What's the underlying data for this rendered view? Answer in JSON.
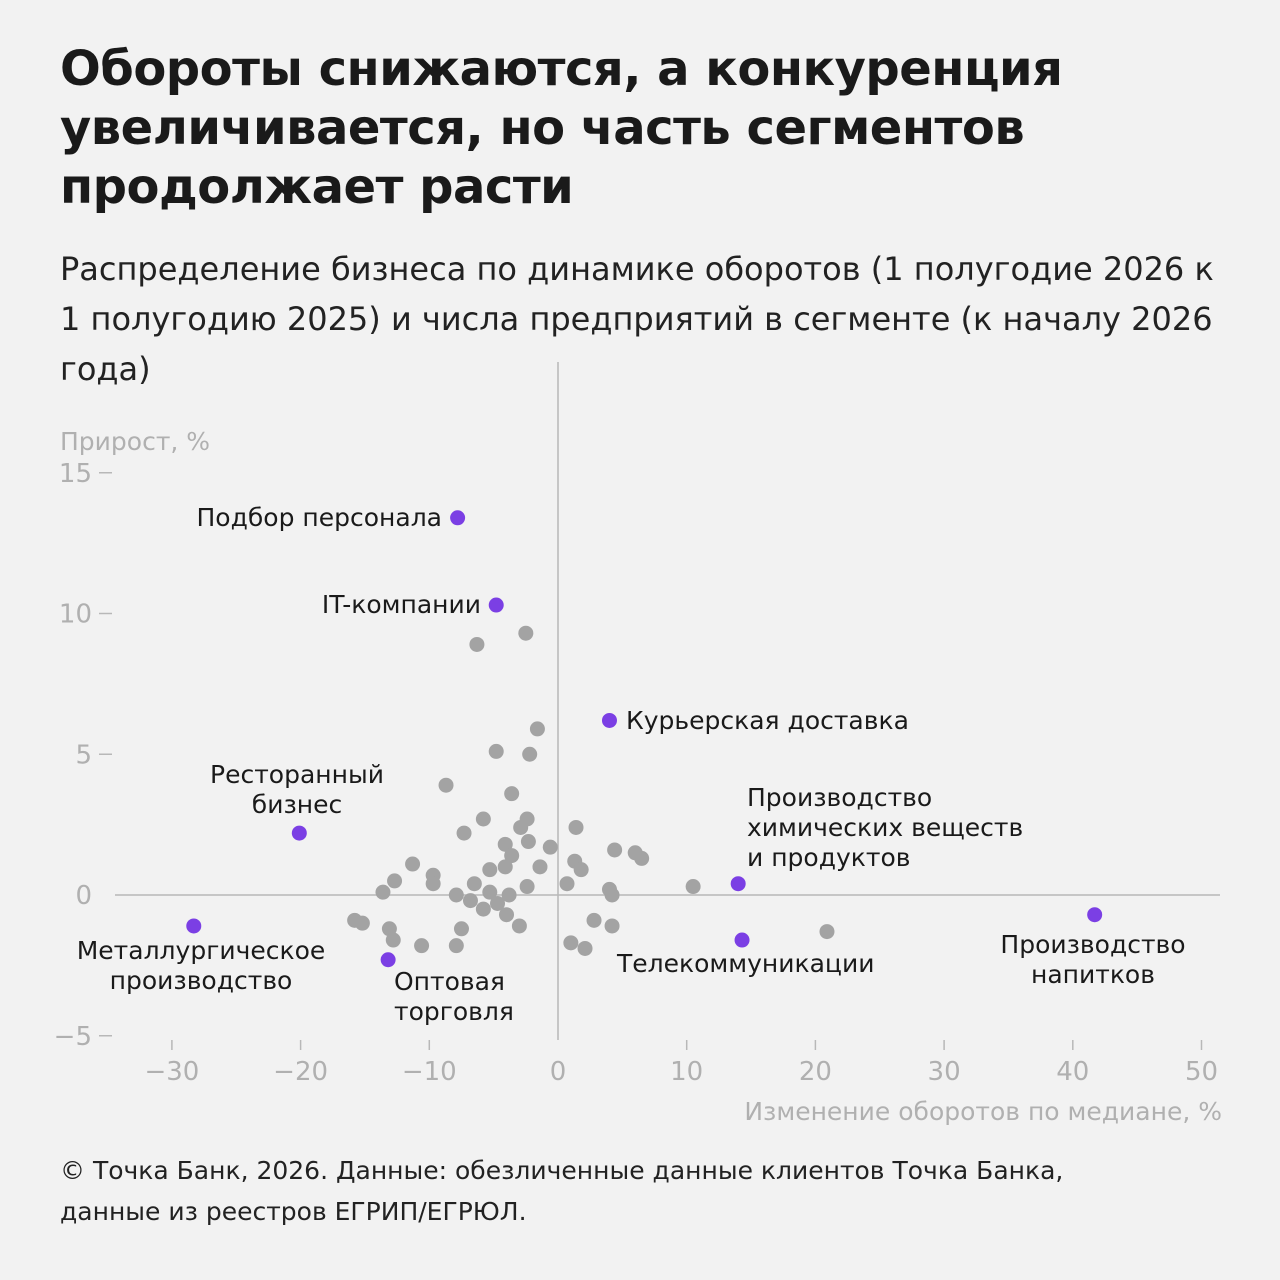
{
  "title": "Обороты снижаются, а конкуренция увеличивается, но часть сегментов продолжает расти",
  "subtitle": "Распределение бизнеса по динамике оборотов (1 полугодие 2026 к 1 полугодию 2025) и числа предприятий в сегменте (к началу 2026 года)",
  "footer_line1": "© Точка Банк, 2026. Данные: обезличенные данные клиентов Точка Банка,",
  "footer_line2": "данные из реестров ЕГРИП/ЕГРЮЛ.",
  "chart_data": {
    "type": "scatter",
    "xlabel": "Изменение оборотов по медиане, %",
    "ylabel": "Прирост, %",
    "xlim": [
      -35,
      51
    ],
    "ylim": [
      -5,
      16
    ],
    "xticks": [
      -30,
      -20,
      -10,
      0,
      10,
      20,
      30,
      40,
      50
    ],
    "yticks": [
      -5,
      0,
      5,
      10,
      15
    ],
    "colors": {
      "highlight": "#7b3fe4",
      "other": "#a3a3a3",
      "axis": "#b8b8b8"
    },
    "highlighted": [
      {
        "label": "Подбор персонала",
        "x": -7.8,
        "y": 13.4
      },
      {
        "label": "IT-компании",
        "x": -4.8,
        "y": 10.3
      },
      {
        "label": "Курьерская доставка",
        "x": 4.0,
        "y": 6.2
      },
      {
        "label": "Ресторанный бизнес",
        "x": -20.1,
        "y": 2.2
      },
      {
        "label": "Производство химических веществ и продуктов",
        "x": 14.0,
        "y": 0.4
      },
      {
        "label": "Металлургическое производство",
        "x": -28.3,
        "y": -1.1
      },
      {
        "label": "Оптовая торговля",
        "x": -13.2,
        "y": -2.3
      },
      {
        "label": "Телекоммуникации",
        "x": 14.3,
        "y": -1.6
      },
      {
        "label": "Производство напитков",
        "x": 41.7,
        "y": -0.7
      }
    ],
    "others": [
      [
        -6.3,
        8.9
      ],
      [
        -2.5,
        9.3
      ],
      [
        -1.6,
        5.9
      ],
      [
        -4.8,
        5.1
      ],
      [
        -2.2,
        5.0
      ],
      [
        -8.7,
        3.9
      ],
      [
        -3.6,
        3.6
      ],
      [
        -2.4,
        2.7
      ],
      [
        -5.8,
        2.7
      ],
      [
        -2.9,
        2.4
      ],
      [
        -7.3,
        2.2
      ],
      [
        -2.3,
        1.9
      ],
      [
        -4.1,
        1.8
      ],
      [
        -0.6,
        1.7
      ],
      [
        -3.6,
        1.4
      ],
      [
        -11.3,
        1.1
      ],
      [
        -5.3,
        0.9
      ],
      [
        -4.1,
        1.0
      ],
      [
        -1.4,
        1.0
      ],
      [
        1.4,
        2.4
      ],
      [
        4.4,
        1.6
      ],
      [
        6.0,
        1.5
      ],
      [
        6.5,
        1.3
      ],
      [
        1.3,
        1.2
      ],
      [
        1.8,
        0.9
      ],
      [
        -9.7,
        0.7
      ],
      [
        -9.7,
        0.4
      ],
      [
        -12.7,
        0.5
      ],
      [
        -6.5,
        0.4
      ],
      [
        -2.4,
        0.3
      ],
      [
        0.7,
        0.4
      ],
      [
        10.5,
        0.3
      ],
      [
        4.0,
        0.2
      ],
      [
        -13.6,
        0.1
      ],
      [
        -7.9,
        0.0
      ],
      [
        -5.3,
        0.1
      ],
      [
        -3.8,
        0.0
      ],
      [
        4.2,
        0.0
      ],
      [
        -6.8,
        -0.2
      ],
      [
        -4.7,
        -0.3
      ],
      [
        -5.8,
        -0.5
      ],
      [
        -4.0,
        -0.7
      ],
      [
        -15.8,
        -0.9
      ],
      [
        -15.2,
        -1.0
      ],
      [
        -13.1,
        -1.2
      ],
      [
        -7.5,
        -1.2
      ],
      [
        -3.0,
        -1.1
      ],
      [
        2.8,
        -0.9
      ],
      [
        4.2,
        -1.1
      ],
      [
        -12.8,
        -1.6
      ],
      [
        -10.6,
        -1.8
      ],
      [
        -7.9,
        -1.8
      ],
      [
        1.0,
        -1.7
      ],
      [
        2.1,
        -1.9
      ],
      [
        20.9,
        -1.3
      ]
    ]
  }
}
